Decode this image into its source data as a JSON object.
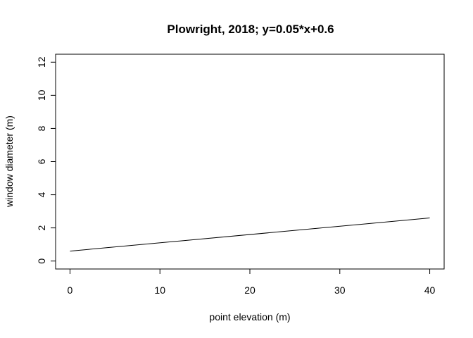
{
  "chart_data": {
    "type": "line",
    "title": "Plowright, 2018; y=0.05*x+0.6",
    "xlabel": "point elevation (m)",
    "ylabel": "window diameter (m)",
    "xlim": [
      -1.6,
      41.6
    ],
    "ylim": [
      -0.48,
      12.48
    ],
    "xticks": [
      0,
      10,
      20,
      30,
      40
    ],
    "yticks": [
      0,
      2,
      4,
      6,
      8,
      10,
      12
    ],
    "grid": false,
    "series": [
      {
        "x": [
          0,
          40
        ],
        "y": [
          0.6,
          2.6
        ],
        "color": "#000000"
      }
    ]
  }
}
